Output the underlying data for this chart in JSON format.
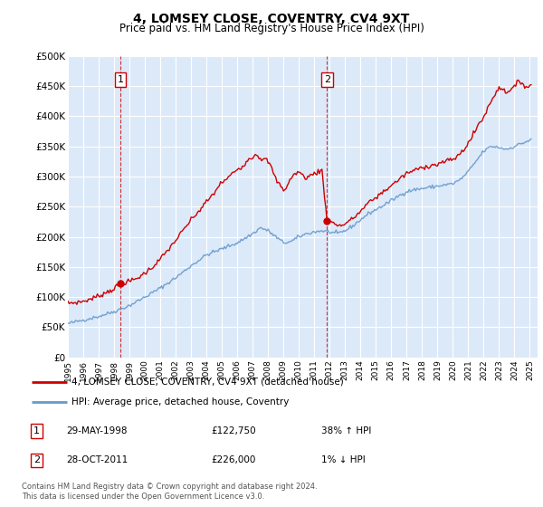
{
  "title": "4, LOMSEY CLOSE, COVENTRY, CV4 9XT",
  "subtitle": "Price paid vs. HM Land Registry's House Price Index (HPI)",
  "ylim": [
    0,
    500000
  ],
  "yticks": [
    0,
    50000,
    100000,
    150000,
    200000,
    250000,
    300000,
    350000,
    400000,
    450000,
    500000
  ],
  "ytick_labels": [
    "£0",
    "£50K",
    "£100K",
    "£150K",
    "£200K",
    "£250K",
    "£300K",
    "£350K",
    "£400K",
    "£450K",
    "£500K"
  ],
  "xlim_start": 1995.0,
  "xlim_end": 2025.5,
  "plot_bg_color": "#dce9f8",
  "grid_color": "#ffffff",
  "sale1_x": 1998.41,
  "sale1_y": 122750,
  "sale2_x": 2011.83,
  "sale2_y": 226000,
  "sale1_label": "1",
  "sale2_label": "2",
  "sale1_date": "29-MAY-1998",
  "sale1_price": "£122,750",
  "sale1_hpi": "38% ↑ HPI",
  "sale2_date": "28-OCT-2011",
  "sale2_price": "£226,000",
  "sale2_hpi": "1% ↓ HPI",
  "legend_line1": "4, LOMSEY CLOSE, COVENTRY, CV4 9XT (detached house)",
  "legend_line2": "HPI: Average price, detached house, Coventry",
  "footer": "Contains HM Land Registry data © Crown copyright and database right 2024.\nThis data is licensed under the Open Government Licence v3.0.",
  "red_line_color": "#cc0000",
  "blue_line_color": "#6699cc",
  "marker_color": "#cc0000",
  "dashed_color": "#cc0000"
}
